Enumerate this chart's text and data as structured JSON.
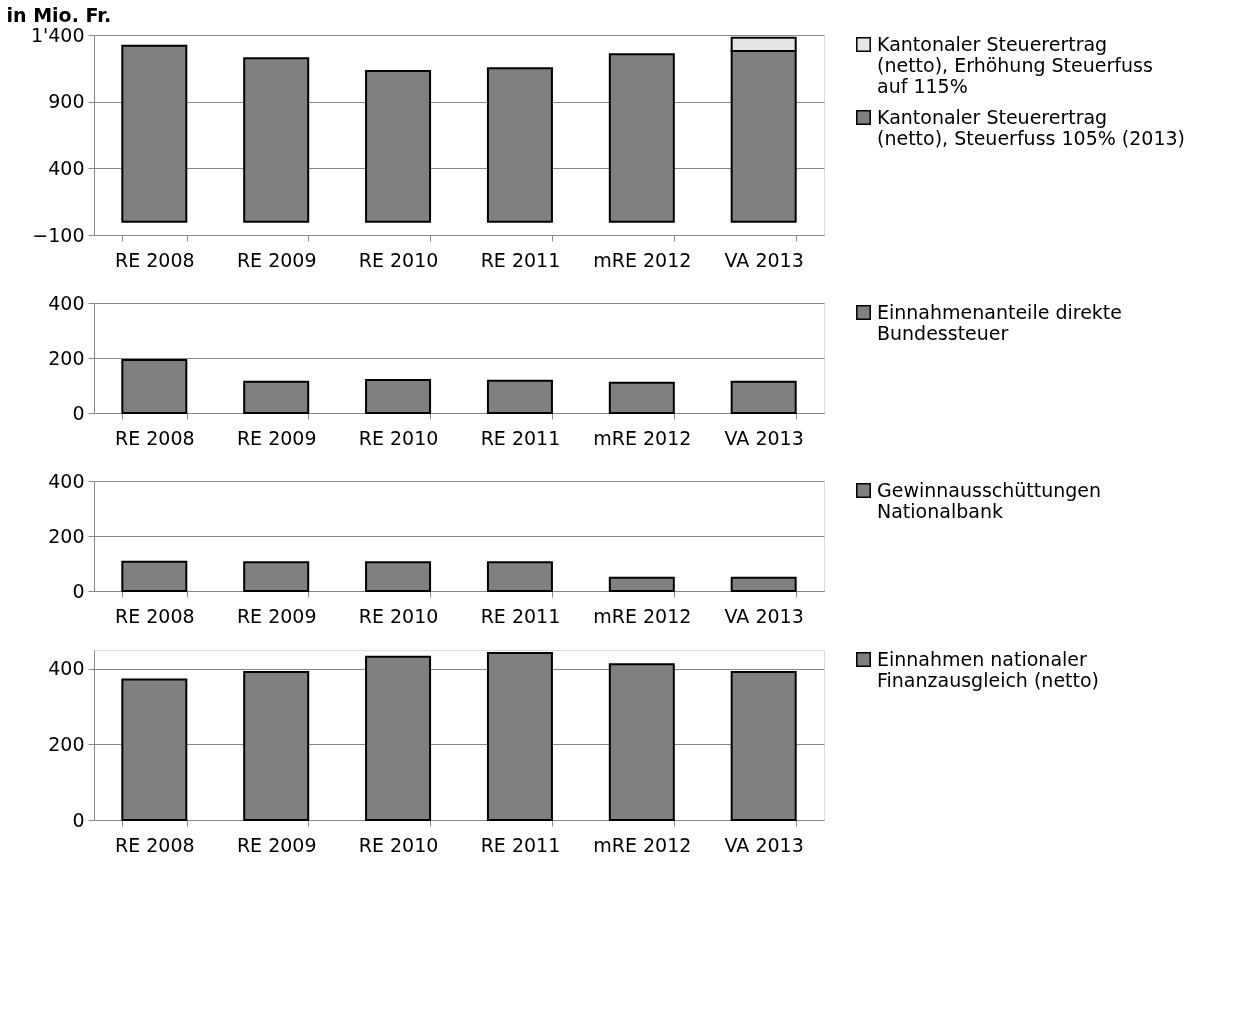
{
  "chart_data": [
    {
      "type": "bar",
      "ylabel": "in Mio. Fr.",
      "stacked": true,
      "categories": [
        "RE 2008",
        "RE 2009",
        "RE 2010",
        "RE 2011",
        "mRE 2012",
        "VA 2013"
      ],
      "series": [
        {
          "name": "Kantonaler Steuerertrag (netto), Steuerfuss 105% (2013)",
          "color": "#808080",
          "values": [
            1320,
            1225,
            1130,
            1150,
            1255,
            1280
          ]
        },
        {
          "name": "Kantonaler Steuerertrag (netto), Erhöhung Steuerfuss auf 115%",
          "color": "#e6e6e6",
          "values": [
            null,
            null,
            null,
            null,
            null,
            100
          ]
        }
      ],
      "ylim": [
        -100,
        1400
      ],
      "yticks": [
        -100,
        400,
        900,
        {
          "value": 1400,
          "label": "1'400"
        }
      ],
      "grid": "y",
      "legend": "right"
    },
    {
      "type": "bar",
      "categories": [
        "RE 2008",
        "RE 2009",
        "RE 2010",
        "RE 2011",
        "mRE 2012",
        "VA 2013"
      ],
      "series": [
        {
          "name": "Einnahmenanteile direkte Bundessteuer",
          "color": "#808080",
          "values": [
            193,
            114,
            120,
            117,
            110,
            114
          ]
        }
      ],
      "ylim": [
        0,
        400
      ],
      "yticks": [
        0,
        200,
        400
      ],
      "grid": "y",
      "legend": "right"
    },
    {
      "type": "bar",
      "categories": [
        "RE 2008",
        "RE 2009",
        "RE 2010",
        "RE 2011",
        "mRE 2012",
        "VA 2013"
      ],
      "series": [
        {
          "name": "Gewinnausschüttungen Nationalbank",
          "color": "#808080",
          "values": [
            106,
            105,
            105,
            105,
            48,
            48
          ]
        }
      ],
      "ylim": [
        0,
        400
      ],
      "yticks": [
        0,
        200,
        400
      ],
      "grid": "y",
      "legend": "right"
    },
    {
      "type": "bar",
      "categories": [
        "RE 2008",
        "RE 2009",
        "RE 2010",
        "RE 2011",
        "mRE 2012",
        "VA 2013"
      ],
      "series": [
        {
          "name": "Einnahmen nationaler Finanzausgleich (netto)",
          "color": "#808080",
          "values": [
            372,
            392,
            432,
            442,
            412,
            392
          ]
        }
      ],
      "ylim": [
        0,
        450
      ],
      "yticks": [
        0,
        200,
        400
      ],
      "grid": "y",
      "legend": "right"
    }
  ]
}
